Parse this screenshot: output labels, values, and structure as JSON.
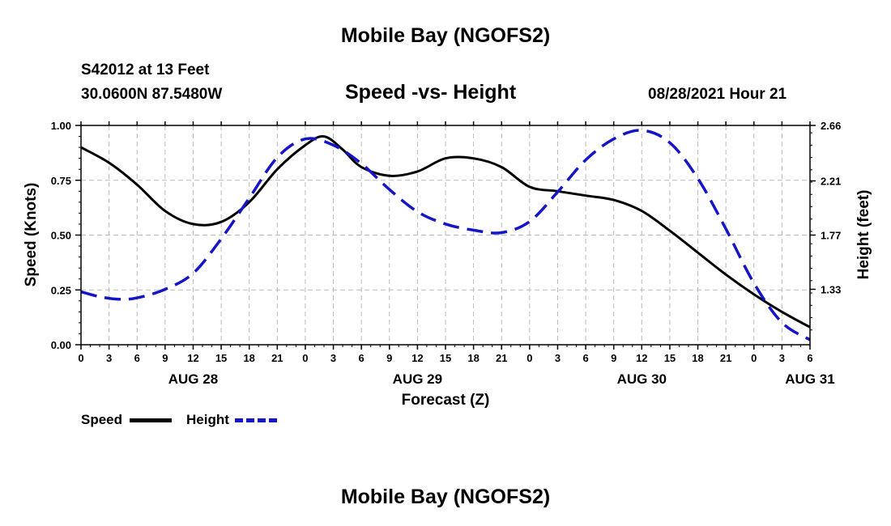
{
  "page": {
    "top_title": "Mobile Bay (NGOFS2)",
    "bottom_title": "Mobile Bay (NGOFS2)",
    "station": "S42012 at 13 Feet",
    "coords": "30.0600N  87.5480W",
    "datetime": "08/28/2021 Hour 21"
  },
  "colors": {
    "speed": "#000000",
    "height": "#1515c8",
    "grid": "#bbbbbb"
  },
  "chart_data": {
    "type": "line",
    "title": "Speed -vs- Height",
    "xlabel": "Forecast (Z)",
    "ylabel": "Speed (Knots)",
    "y2label": "Height (feet)",
    "x_range_hours": [
      0,
      78
    ],
    "ylim": [
      0,
      1
    ],
    "y2lim": [
      0.88,
      2.66
    ],
    "yticks": [
      "0.00",
      "0.25",
      "0.50",
      "0.75",
      "1.00"
    ],
    "y2ticks": [
      {
        "value": 2.66,
        "label": "2.66"
      },
      {
        "value": 2.21,
        "label": "2.21"
      },
      {
        "value": 1.77,
        "label": "1.77"
      },
      {
        "value": 1.33,
        "label": "1.33"
      }
    ],
    "xtick_labels": [
      "0",
      "3",
      "6",
      "9",
      "12",
      "15",
      "18",
      "21",
      "0",
      "3",
      "6",
      "9",
      "12",
      "15",
      "18",
      "21",
      "0",
      "3",
      "6",
      "9",
      "12",
      "15",
      "18",
      "21",
      "0",
      "3",
      "6"
    ],
    "day_labels": [
      {
        "label": "AUG 28",
        "hour": 12
      },
      {
        "label": "AUG 29",
        "hour": 36
      },
      {
        "label": "AUG 30",
        "hour": 60
      },
      {
        "label": "AUG 31",
        "hour": 78
      }
    ],
    "legend": [
      {
        "name": "Speed",
        "style": "solid"
      },
      {
        "name": "Height",
        "style": "dashed"
      }
    ],
    "series": [
      {
        "name": "Speed",
        "axis": "left",
        "points": [
          [
            0,
            0.9
          ],
          [
            3,
            0.83
          ],
          [
            6,
            0.73
          ],
          [
            9,
            0.61
          ],
          [
            12,
            0.55
          ],
          [
            15,
            0.56
          ],
          [
            18,
            0.65
          ],
          [
            21,
            0.8
          ],
          [
            24,
            0.91
          ],
          [
            26,
            0.95
          ],
          [
            28,
            0.89
          ],
          [
            30,
            0.81
          ],
          [
            33,
            0.77
          ],
          [
            36,
            0.79
          ],
          [
            39,
            0.85
          ],
          [
            42,
            0.85
          ],
          [
            45,
            0.81
          ],
          [
            48,
            0.72
          ],
          [
            51,
            0.7
          ],
          [
            54,
            0.68
          ],
          [
            57,
            0.66
          ],
          [
            60,
            0.61
          ],
          [
            63,
            0.52
          ],
          [
            66,
            0.42
          ],
          [
            69,
            0.32
          ],
          [
            72,
            0.23
          ],
          [
            75,
            0.15
          ],
          [
            78,
            0.08
          ]
        ]
      },
      {
        "name": "Height",
        "axis": "right",
        "points": [
          [
            0,
            1.31
          ],
          [
            2,
            1.27
          ],
          [
            4,
            1.25
          ],
          [
            6,
            1.26
          ],
          [
            9,
            1.33
          ],
          [
            12,
            1.46
          ],
          [
            15,
            1.74
          ],
          [
            18,
            2.07
          ],
          [
            21,
            2.4
          ],
          [
            24,
            2.55
          ],
          [
            27,
            2.5
          ],
          [
            30,
            2.35
          ],
          [
            33,
            2.14
          ],
          [
            36,
            1.96
          ],
          [
            39,
            1.86
          ],
          [
            42,
            1.81
          ],
          [
            45,
            1.79
          ],
          [
            48,
            1.88
          ],
          [
            51,
            2.12
          ],
          [
            54,
            2.38
          ],
          [
            57,
            2.55
          ],
          [
            60,
            2.62
          ],
          [
            63,
            2.52
          ],
          [
            66,
            2.23
          ],
          [
            69,
            1.82
          ],
          [
            72,
            1.38
          ],
          [
            75,
            1.06
          ],
          [
            78,
            0.92
          ]
        ]
      }
    ]
  }
}
